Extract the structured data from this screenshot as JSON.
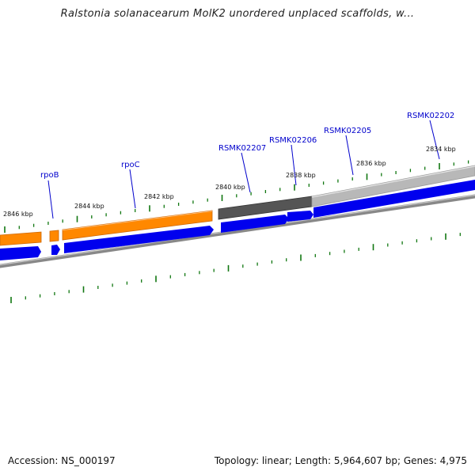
{
  "title": "Ralstonia solanacearum MolK2 unordered unplaced scaffolds, w...",
  "footer": {
    "accession": "Accession: NS_000197",
    "summary": "Topology: linear; Length: 5,964,607 bp; Genes: 4,975"
  },
  "colors": {
    "tick": "#117711",
    "gene_blue": "#0000ee",
    "gene_label": "#0000cc",
    "rpo_operon": "#ff8800",
    "rsmk_dark": "#555555",
    "rsmk_light": "#b8b8b8",
    "backbone": "#888888"
  },
  "kbp_labels": [
    {
      "text": "2846 kbp",
      "kbp": 2846
    },
    {
      "text": "2844 kbp",
      "kbp": 2844
    },
    {
      "text": "2842 kbp",
      "kbp": 2842
    },
    {
      "text": "2840 kbp",
      "kbp": 2840
    },
    {
      "text": "2838 kbp",
      "kbp": 2838
    },
    {
      "text": "2836 kbp",
      "kbp": 2836
    },
    {
      "text": "2834 kbp",
      "kbp": 2834
    }
  ],
  "genes": [
    {
      "name": "rpoB"
    },
    {
      "name": "rpoC"
    },
    {
      "name": "RSMK02207"
    },
    {
      "name": "RSMK02206"
    },
    {
      "name": "RSMK02205"
    },
    {
      "name": "RSMK02202"
    }
  ]
}
